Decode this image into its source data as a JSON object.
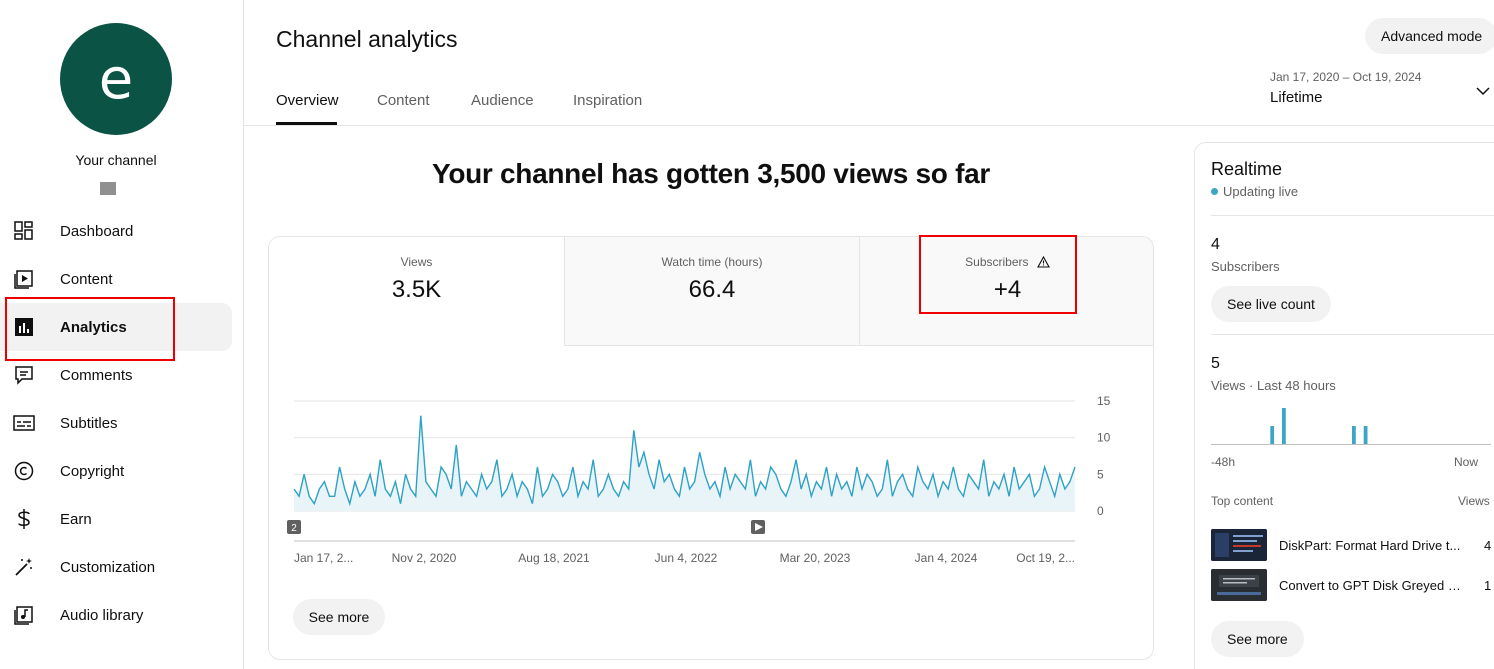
{
  "sidebar": {
    "avatar_letter": "e",
    "channel_label": "Your channel",
    "items": [
      {
        "label": "Dashboard",
        "icon": "dashboard-icon"
      },
      {
        "label": "Content",
        "icon": "content-icon"
      },
      {
        "label": "Analytics",
        "icon": "analytics-icon",
        "active": true
      },
      {
        "label": "Comments",
        "icon": "comments-icon"
      },
      {
        "label": "Subtitles",
        "icon": "subtitles-icon"
      },
      {
        "label": "Copyright",
        "icon": "copyright-icon"
      },
      {
        "label": "Earn",
        "icon": "earn-icon"
      },
      {
        "label": "Customization",
        "icon": "customization-icon"
      },
      {
        "label": "Audio library",
        "icon": "audio-library-icon"
      }
    ]
  },
  "header": {
    "title": "Channel analytics",
    "advanced_mode_label": "Advanced mode",
    "tabs": [
      {
        "label": "Overview",
        "active": true
      },
      {
        "label": "Content"
      },
      {
        "label": "Audience"
      },
      {
        "label": "Inspiration"
      }
    ],
    "date_range": "Jan 17, 2020 – Oct 19, 2024",
    "date_preset": "Lifetime"
  },
  "main": {
    "headline": "Your channel has gotten 3,500 views so far",
    "metrics": [
      {
        "label": "Views",
        "value": "3.5K",
        "active": true
      },
      {
        "label": "Watch time (hours)",
        "value": "66.4"
      },
      {
        "label": "Subscribers",
        "value": "+4",
        "warning": true
      }
    ],
    "see_more_label": "See more"
  },
  "chart_data": {
    "type": "line",
    "title": "",
    "xlabel": "",
    "ylabel": "",
    "x_tick_labels": [
      "Jan 17, 2...",
      "Nov 2, 2020",
      "Aug 18, 2021",
      "Jun 4, 2022",
      "Mar 20, 2023",
      "Jan 4, 2024",
      "Oct 19, 2..."
    ],
    "y_ticks": [
      0,
      5,
      10,
      15
    ],
    "ylim": [
      0,
      15
    ],
    "annotations": [
      {
        "label": "2"
      }
    ],
    "series": [
      {
        "values": [
          3,
          2,
          5,
          2,
          1,
          3,
          4,
          2,
          2,
          6,
          3,
          1,
          4,
          2,
          3,
          5,
          2,
          7,
          3,
          2,
          4,
          1,
          5,
          3,
          2,
          13,
          4,
          3,
          2,
          6,
          5,
          3,
          9,
          2,
          4,
          3,
          2,
          5,
          3,
          4,
          7,
          2,
          3,
          5,
          2,
          4,
          3,
          1,
          6,
          2,
          3,
          5,
          4,
          2,
          3,
          6,
          2,
          4,
          3,
          7,
          2,
          3,
          5,
          3,
          2,
          4,
          3,
          11,
          6,
          8,
          5,
          3,
          7,
          4,
          5,
          3,
          2,
          6,
          3,
          4,
          8,
          5,
          3,
          4,
          2,
          6,
          3,
          5,
          4,
          3,
          7,
          2,
          4,
          3,
          6,
          5,
          3,
          2,
          4,
          7,
          3,
          5,
          2,
          4,
          3,
          6,
          2,
          5,
          3,
          4,
          2,
          6,
          3,
          5,
          4,
          2,
          3,
          7,
          2,
          4,
          5,
          3,
          2,
          6,
          4,
          3,
          5,
          2,
          4,
          3,
          6,
          3,
          2,
          5,
          4,
          3,
          7,
          2,
          4,
          3,
          5,
          2,
          6,
          3,
          4,
          5,
          2,
          3,
          6,
          4,
          2,
          5,
          3,
          4,
          6
        ]
      }
    ]
  },
  "realtime": {
    "title": "Realtime",
    "live_label": "Updating live",
    "subscribers_value": "4",
    "subscribers_label": "Subscribers",
    "see_live_count_label": "See live count",
    "views_value": "5",
    "views_label": "Views · Last 48 hours",
    "mini_chart": [
      0,
      0,
      0,
      0,
      0,
      0,
      0,
      0,
      0,
      0,
      2,
      0,
      4,
      0,
      0,
      0,
      0,
      0,
      0,
      0,
      0,
      0,
      0,
      0,
      2,
      0,
      2,
      0,
      0,
      0,
      0,
      0,
      0,
      0,
      0,
      0,
      0,
      0,
      0,
      0,
      0,
      0,
      0,
      0,
      0,
      0,
      0,
      0
    ],
    "axis_left": "-48h",
    "axis_right": "Now",
    "top_content_label": "Top content",
    "views_col_label": "Views",
    "top_content": [
      {
        "title": "DiskPart: Format Hard Drive t...",
        "views": "4"
      },
      {
        "title": "Convert to GPT Disk Greyed O...",
        "views": "1"
      }
    ],
    "see_more_label": "See more",
    "accent_color": "#3ea6c5"
  }
}
